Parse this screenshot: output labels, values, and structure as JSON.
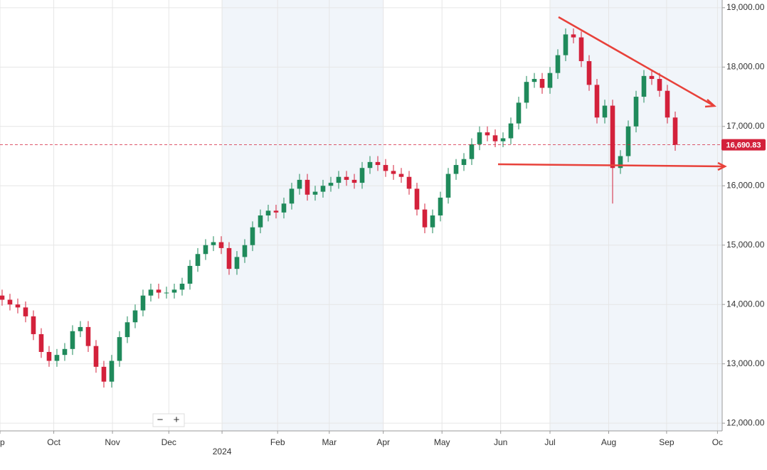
{
  "chart_data": {
    "type": "candlestick",
    "open": [
      14150,
      14080,
      14000,
      13950,
      13800,
      13500,
      13200,
      13050,
      13150,
      13250,
      13550,
      13620,
      13300,
      12950,
      12700,
      13050,
      13450,
      13700,
      13900,
      14150,
      14250,
      14200,
      14200,
      14250,
      14350,
      14650,
      14850,
      15000,
      15050,
      14950,
      14600,
      14800,
      15000,
      15300,
      15500,
      15580,
      15550,
      15700,
      15950,
      16100,
      15850,
      15900,
      16000,
      16050,
      16150,
      16100,
      16050,
      16300,
      16400,
      16350,
      16250,
      16200,
      16150,
      15950,
      15600,
      15300,
      15500,
      15800,
      16200,
      16350,
      16450,
      16700,
      16900,
      16850,
      16750,
      16800,
      17050,
      17400,
      17750,
      17800,
      17650,
      17900,
      18200,
      18550,
      18500,
      18100,
      17700,
      17150,
      17350,
      16300,
      16500,
      17000,
      17500,
      17850,
      17800,
      17600,
      17150
    ],
    "high": [
      14250,
      14180,
      14100,
      14050,
      13900,
      13600,
      13300,
      13250,
      13350,
      13650,
      13720,
      13720,
      13400,
      13050,
      13150,
      13550,
      13800,
      14000,
      14250,
      14350,
      14350,
      14300,
      14350,
      14450,
      14750,
      14950,
      15100,
      15150,
      15150,
      15050,
      14900,
      15100,
      15400,
      15600,
      15680,
      15680,
      15800,
      16050,
      16200,
      16200,
      16000,
      16100,
      16150,
      16250,
      16250,
      16200,
      16400,
      16500,
      16500,
      16450,
      16350,
      16300,
      16250,
      16050,
      15700,
      15600,
      15900,
      16300,
      16450,
      16550,
      16800,
      17000,
      17000,
      16950,
      16900,
      17150,
      17500,
      17850,
      17900,
      17900,
      18000,
      18300,
      18650,
      18650,
      18600,
      18200,
      17800,
      17450,
      17450,
      16600,
      17100,
      17600,
      17950,
      17950,
      17900,
      17700,
      17250
    ],
    "low": [
      13980,
      13900,
      13850,
      13700,
      13400,
      13100,
      12950,
      12950,
      13050,
      13150,
      13450,
      13200,
      12850,
      12600,
      12600,
      12950,
      13350,
      13600,
      13800,
      14050,
      14100,
      14100,
      14100,
      14150,
      14250,
      14550,
      14750,
      14900,
      14850,
      14500,
      14500,
      14700,
      14900,
      15200,
      15400,
      15450,
      15450,
      15600,
      15850,
      15750,
      15750,
      15800,
      15900,
      15950,
      16000,
      15950,
      15950,
      16200,
      16250,
      16150,
      16100,
      16050,
      15850,
      15500,
      15200,
      15200,
      15400,
      15700,
      16100,
      16250,
      16350,
      16600,
      16750,
      16650,
      16650,
      16700,
      16950,
      17300,
      17650,
      17550,
      17550,
      17800,
      18100,
      18400,
      18000,
      17600,
      17050,
      17050,
      15700,
      16200,
      16400,
      16900,
      17400,
      17700,
      17500,
      17050,
      16590
    ],
    "close": [
      14080,
      14000,
      13950,
      13800,
      13500,
      13200,
      13050,
      13150,
      13250,
      13550,
      13620,
      13300,
      12950,
      12700,
      13050,
      13450,
      13700,
      13900,
      14150,
      14250,
      14200,
      14200,
      14250,
      14350,
      14650,
      14850,
      15000,
      15050,
      14950,
      14600,
      14800,
      15000,
      15300,
      15500,
      15580,
      15550,
      15700,
      15950,
      16100,
      15850,
      15900,
      16000,
      16050,
      16150,
      16100,
      16050,
      16300,
      16400,
      16350,
      16250,
      16200,
      16150,
      15950,
      15600,
      15300,
      15500,
      15800,
      16200,
      16350,
      16450,
      16700,
      16900,
      16850,
      16750,
      16800,
      17050,
      17400,
      17750,
      17800,
      17650,
      17900,
      18200,
      18550,
      18500,
      18100,
      17700,
      17150,
      17350,
      16300,
      16500,
      17000,
      17500,
      17850,
      17800,
      17600,
      17150,
      16690.83
    ],
    "up_color": "#1f8a5b",
    "down_color": "#d3213b",
    "last_price": {
      "value": 16690.83,
      "label": "16,690.83"
    },
    "xlim": [
      -0.27,
      92
    ],
    "xticks": [
      {
        "value": -0.27,
        "label": "ep"
      },
      {
        "value": 6.6,
        "label": "Oct"
      },
      {
        "value": 14.1,
        "label": "Nov"
      },
      {
        "value": 21.3,
        "label": "Dec"
      },
      {
        "value": 28.1,
        "label": "2024"
      },
      {
        "value": 35.2,
        "label": "Feb"
      },
      {
        "value": 41.8,
        "label": "Mar"
      },
      {
        "value": 48.7,
        "label": "Apr"
      },
      {
        "value": 56.2,
        "label": "May"
      },
      {
        "value": 63.7,
        "label": "Jun"
      },
      {
        "value": 70,
        "label": "Jul"
      },
      {
        "value": 77.5,
        "label": "Aug"
      },
      {
        "value": 84.9,
        "label": "Sep"
      },
      {
        "value": 91.4,
        "label": "Oc"
      }
    ],
    "ylim": [
      11870,
      19130
    ],
    "yticks": [
      {
        "value": 12000,
        "label": "12,000.00"
      },
      {
        "value": 13000,
        "label": "13,000.00"
      },
      {
        "value": 14000,
        "label": "14,000.00"
      },
      {
        "value": 15000,
        "label": "15,000.00"
      },
      {
        "value": 16000,
        "label": "16,000.00"
      },
      {
        "value": 17000,
        "label": "17,000.00"
      },
      {
        "value": 18000,
        "label": "18,000.00"
      },
      {
        "value": 19000,
        "label": "19,000.00"
      }
    ],
    "grid": true
  },
  "zoom": {
    "minus": "−",
    "plus": "+"
  }
}
